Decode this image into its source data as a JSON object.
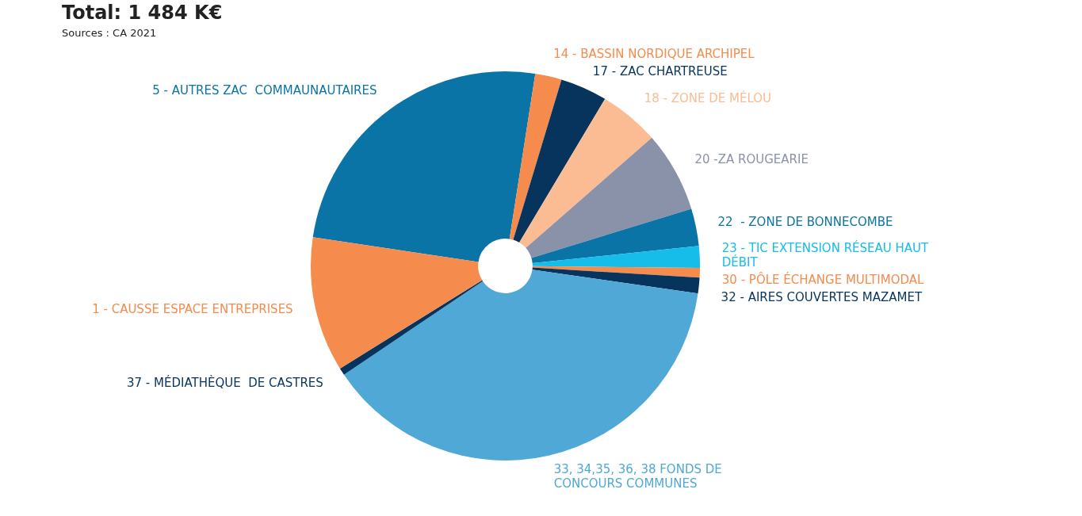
{
  "chart_data": {
    "type": "donut",
    "title": "Total: 1 484 K€",
    "annotations": [
      "Sources : CA 2021"
    ],
    "categories": [
      "5 - AUTRES ZAC  COMMAUNAUTAIRES",
      "14 - BASSIN NORDIQUE ARCHIPEL",
      "17 - ZAC CHARTREUSE",
      "18 - ZONE DE MÉLOU",
      "20 -ZA ROUGEARIE",
      "22  - ZONE DE BONNECOMBE",
      "23 - TIC EXTENSION RÉSEAU HAUT DÉBIT",
      "30 - PÔLE ÉCHANGE MULTIMODAL",
      "32 - AIRES COUVERTES MAZAMET",
      "33, 34,35, 36, 38 FONDS DE CONCOURS COMMUNES",
      "37 - MÉDIATHÈQUE  DE CASTRES",
      "1 - CAUSSE ESPACE ENTREPRISES"
    ],
    "values": [
      25.1,
      2.2,
      3.9,
      5.0,
      6.7,
      3.1,
      1.8,
      0.8,
      1.3,
      38.3,
      0.6,
      11.2
    ],
    "colors": [
      "#0a74a6",
      "#f58b4c",
      "#06345c",
      "#fbbc93",
      "#8a92aa",
      "#0a74a6",
      "#16bde8",
      "#f58b4c",
      "#06345c",
      "#4fa8d6",
      "#06345c",
      "#f58b4c"
    ],
    "legend": false
  }
}
